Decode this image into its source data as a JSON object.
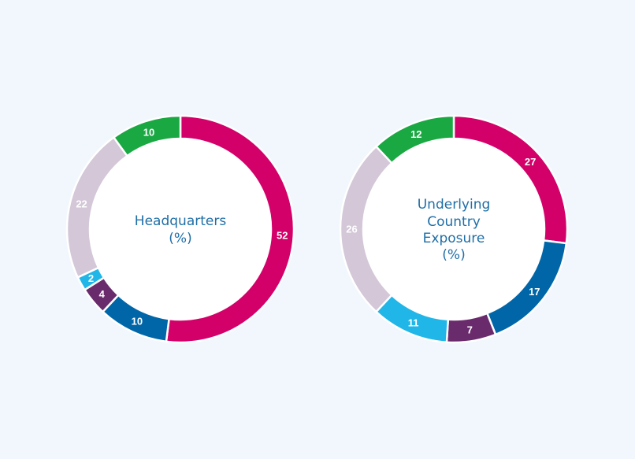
{
  "chart_data": [
    {
      "type": "pie",
      "title": "Headquarters (%)",
      "title_lines": [
        "Headquarters",
        "(%)"
      ],
      "slices": [
        {
          "value": 52,
          "label": "52",
          "color": "#d4006a"
        },
        {
          "value": 10,
          "label": "10",
          "color": "#0066a8"
        },
        {
          "value": 4,
          "label": "4",
          "color": "#6a2b6d"
        },
        {
          "value": 2,
          "label": "2",
          "color": "#21b6e8"
        },
        {
          "value": 22,
          "label": "22",
          "color": "#d3c7d8"
        },
        {
          "value": 10,
          "label": "10",
          "color": "#1aa843"
        }
      ]
    },
    {
      "type": "pie",
      "title": "Underlying Country Exposure (%)",
      "title_lines": [
        "Underlying",
        "Country",
        "Exposure",
        "(%)"
      ],
      "slices": [
        {
          "value": 27,
          "label": "27",
          "color": "#d4006a"
        },
        {
          "value": 17,
          "label": "17",
          "color": "#0066a8"
        },
        {
          "value": 7,
          "label": "7",
          "color": "#6a2b6d"
        },
        {
          "value": 11,
          "label": "11",
          "color": "#21b6e8"
        },
        {
          "value": 26,
          "label": "26",
          "color": "#d3c7d8"
        },
        {
          "value": 12,
          "label": "12",
          "color": "#1aa843"
        }
      ]
    }
  ]
}
